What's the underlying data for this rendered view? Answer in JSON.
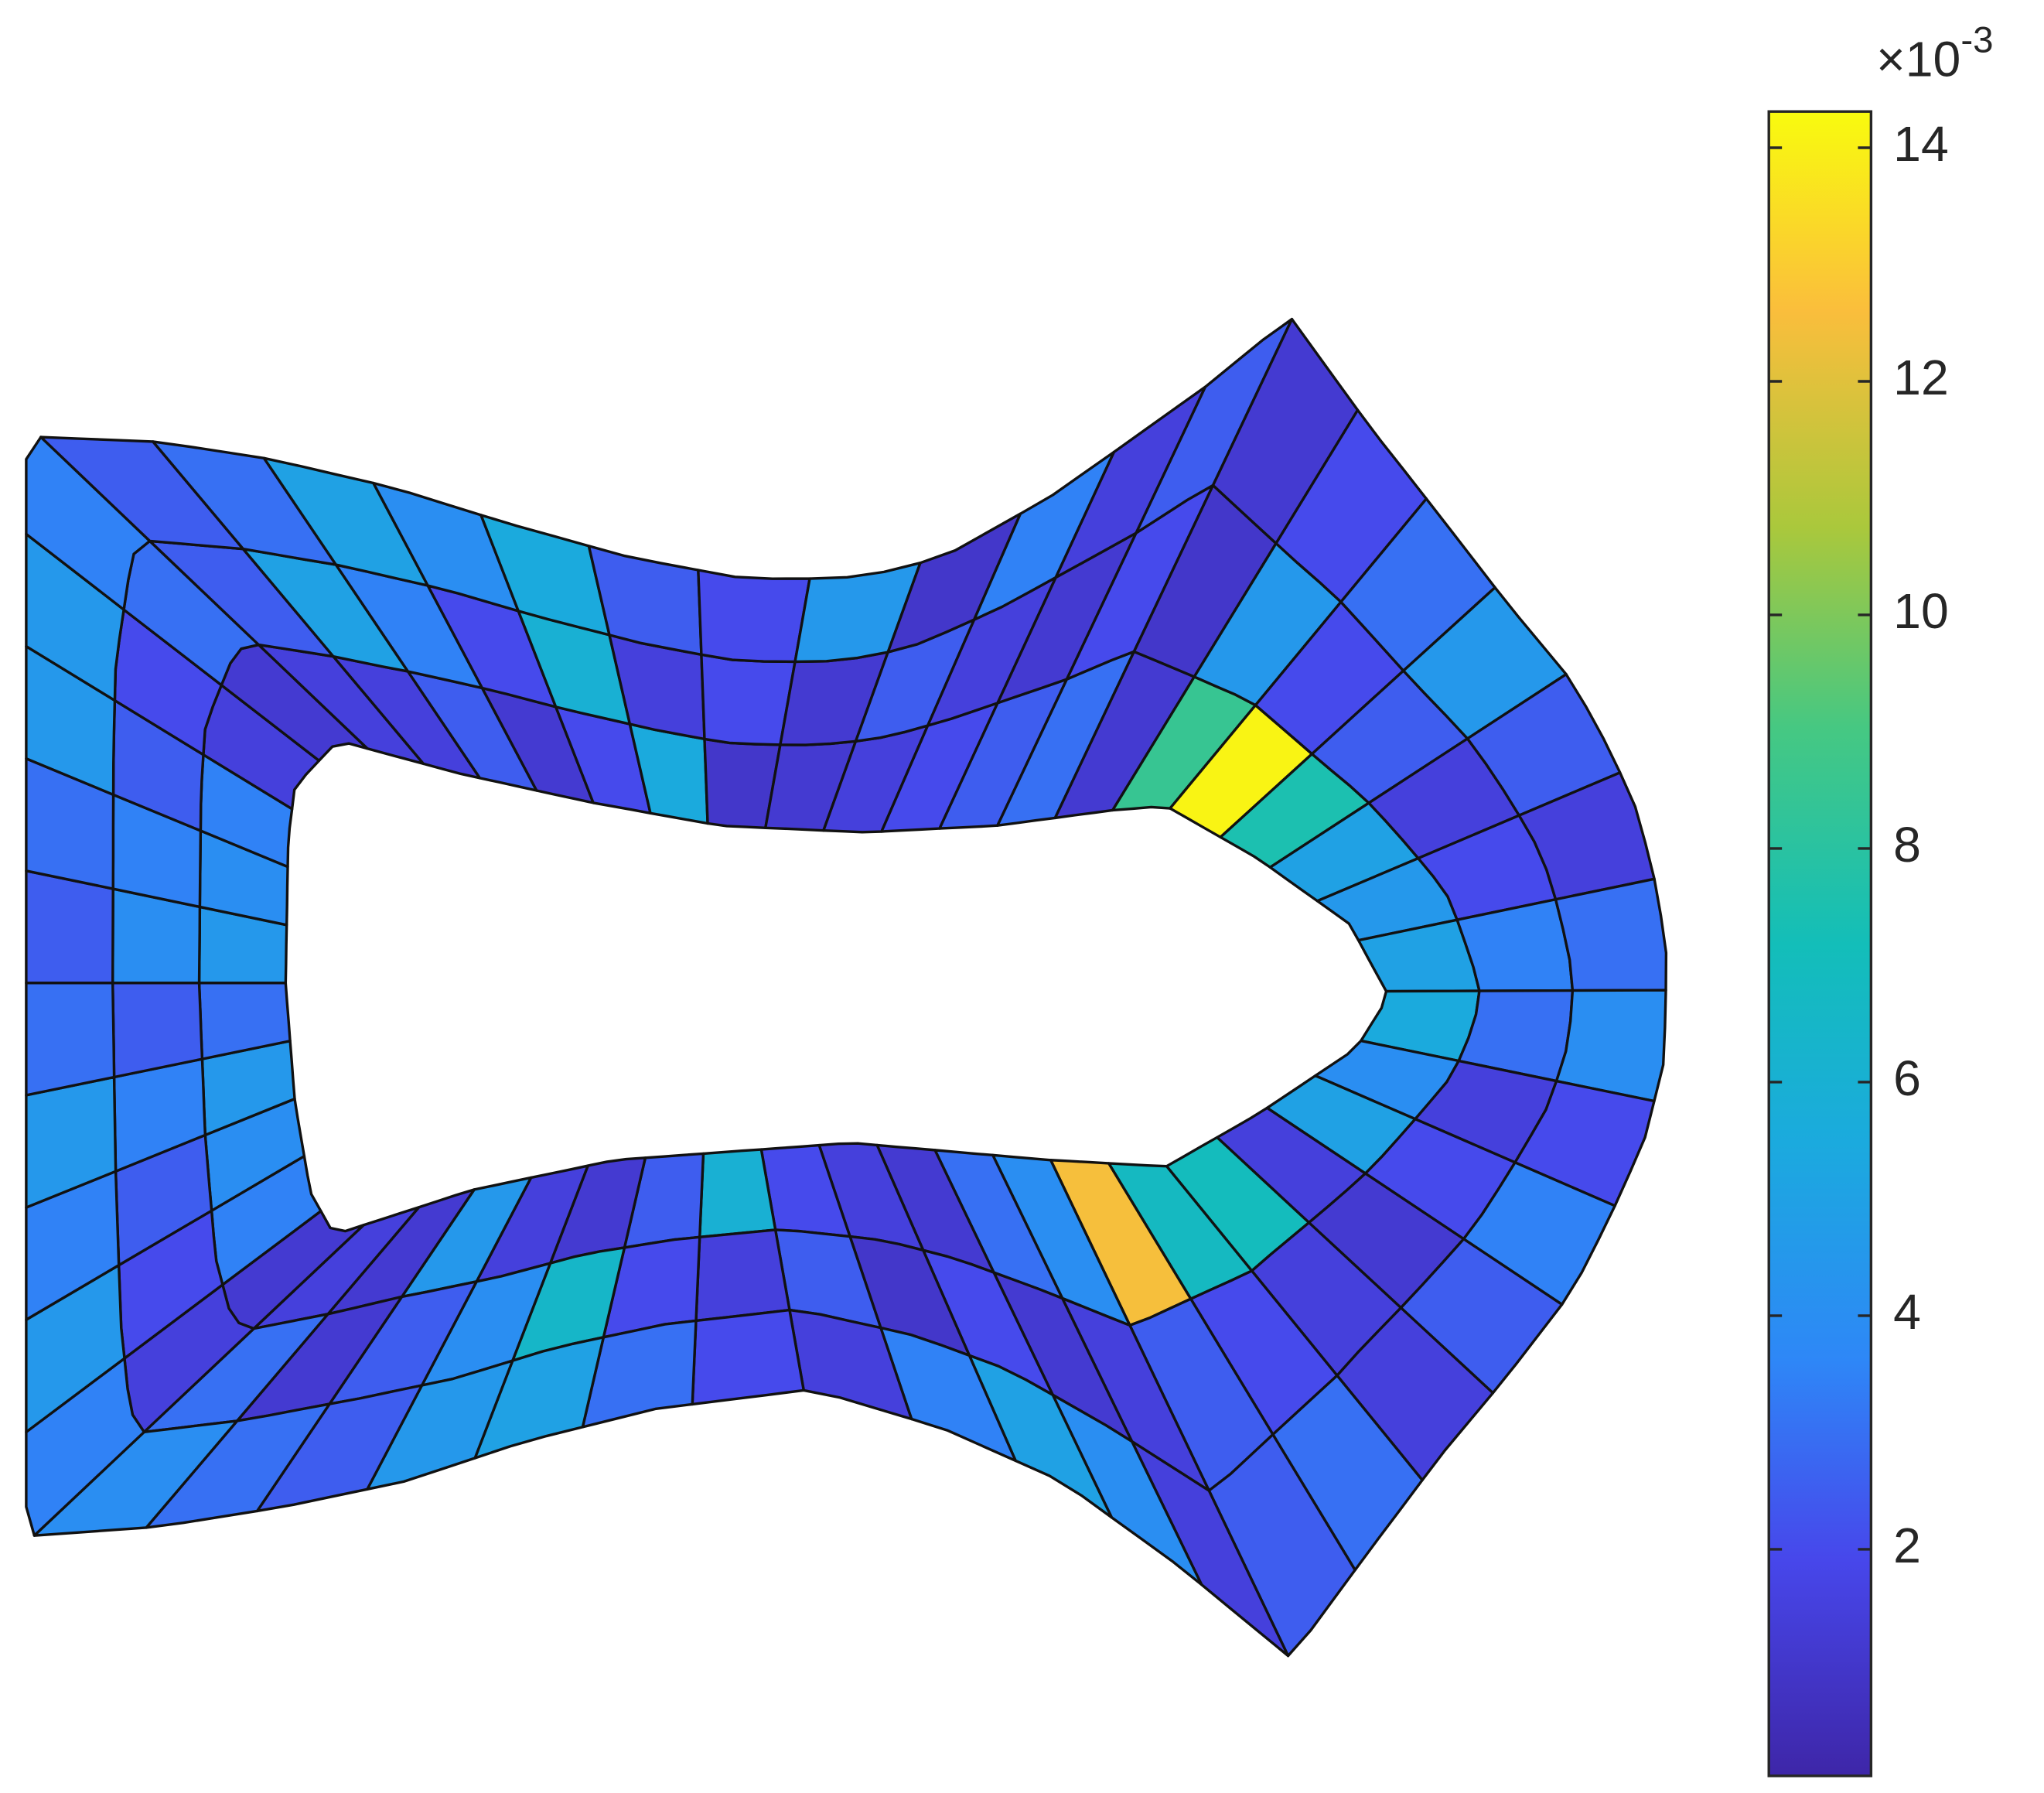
{
  "chart_data": {
    "type": "mesh",
    "colorbar": {
      "ylim": [
        0.06,
        14.31
      ],
      "yticks": [
        2,
        4,
        6,
        8,
        10,
        12,
        14
      ],
      "multiplier_base": "×10",
      "multiplier_exponent": "-3"
    },
    "values": [
      [
        4.5,
        4.0,
        3.5,
        1.5,
        1.2,
        1.5,
        1.5,
        2.5,
        1.2,
        2.0,
        5.5,
        1.0,
        1.2,
        1.5,
        2.0,
        2.5,
        3.0,
        1.2,
        8.5,
        14.1,
        7.5,
        5.0,
        4.5,
        5.0,
        5.5,
        4.0,
        5.0,
        1.5,
        7.0,
        6.8,
        12.5,
        4.0,
        3.0,
        1.2,
        1.5,
        2.0,
        6.0,
        2.5,
        1.2,
        1.5,
        4.5,
        1.2,
        1.5,
        1.2,
        3.5,
        4.0,
        4.5,
        3.0
      ],
      [
        4.0,
        3.5,
        2.5,
        2.0,
        3.0,
        2.5,
        5.0,
        3.5,
        2.0,
        6.0,
        1.5,
        2.0,
        1.2,
        2.5,
        1.5,
        1.2,
        2.0,
        1.0,
        4.5,
        2.0,
        2.5,
        1.5,
        2.0,
        3.5,
        3.0,
        1.5,
        2.0,
        1.2,
        1.5,
        2.0,
        2.5,
        1.5,
        1.2,
        2.0,
        1.0,
        2.5,
        1.5,
        2.0,
        6.5,
        4.0,
        2.5,
        1.2,
        3.0,
        1.5,
        2.0,
        2.5,
        3.5,
        2.5
      ],
      [
        2.5,
        3.0,
        4.5,
        4.5,
        3.5,
        2.5,
        3.0,
        5.0,
        4.0,
        5.5,
        2.5,
        2.0,
        4.5,
        1.0,
        3.5,
        1.5,
        2.5,
        1.2,
        2.0,
        3.0,
        4.5,
        2.5,
        1.5,
        3.0,
        4.0,
        2.0,
        3.5,
        2.5,
        1.5,
        3.0,
        2.5,
        1.5,
        4.0,
        5.0,
        3.5,
        1.5,
        2.0,
        3.0,
        5.0,
        4.5,
        2.5,
        3.0,
        4.0,
        3.5,
        4.5,
        3.5,
        4.5,
        3.0
      ]
    ]
  }
}
